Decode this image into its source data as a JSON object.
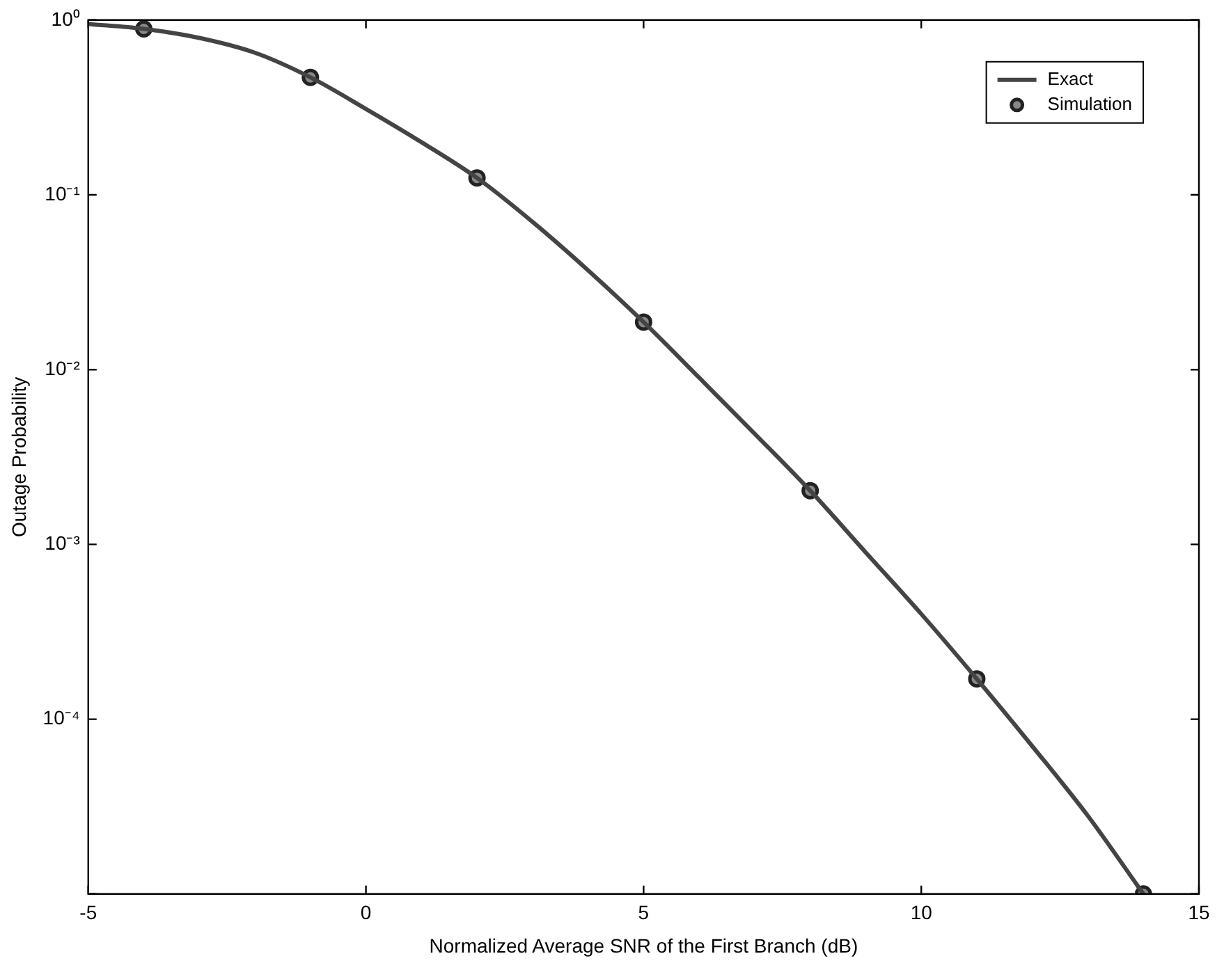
{
  "chart_data": {
    "type": "line",
    "xlabel": "Normalized Average SNR of the First Branch (dB)",
    "ylabel": "Outage Probability",
    "xlim": [
      -5,
      15
    ],
    "xticks": [
      -5,
      0,
      5,
      10,
      15
    ],
    "ylim": [
      1e-05,
      1
    ],
    "yticks": [
      {
        "value": 1,
        "label": "10⁰"
      },
      {
        "value": 0.1,
        "label": "10⁻¹"
      },
      {
        "value": 0.01,
        "label": "10⁻²"
      },
      {
        "value": 0.001,
        "label": "10⁻³"
      },
      {
        "value": 0.0001,
        "label": "10⁻⁴"
      },
      {
        "value": 1e-05,
        "label": null
      }
    ],
    "log": "y",
    "grid": false,
    "legend": "top right",
    "series": [
      {
        "name": "Exact",
        "type": "line",
        "color": "#444444",
        "marker": "none",
        "x": [
          -5,
          -4,
          -3,
          -2,
          -1,
          0,
          1,
          2,
          3,
          4,
          5,
          6,
          7,
          8,
          9,
          10,
          11,
          12,
          13,
          14
        ],
        "values": [
          0.95,
          0.89,
          0.79,
          0.65,
          0.47,
          0.31,
          0.2,
          0.125,
          0.07,
          0.037,
          0.0187,
          0.009,
          0.0043,
          0.00203,
          0.0009,
          0.0004,
          0.00017,
          7e-05,
          2.8e-05,
          1e-05
        ]
      },
      {
        "name": "Simulation",
        "type": "scatter",
        "color": "#888888",
        "marker": "circle",
        "x": [
          -4,
          -1,
          2,
          5,
          8,
          11,
          14
        ],
        "values": [
          0.89,
          0.47,
          0.125,
          0.0187,
          0.00203,
          0.00017,
          1e-05
        ]
      }
    ]
  }
}
